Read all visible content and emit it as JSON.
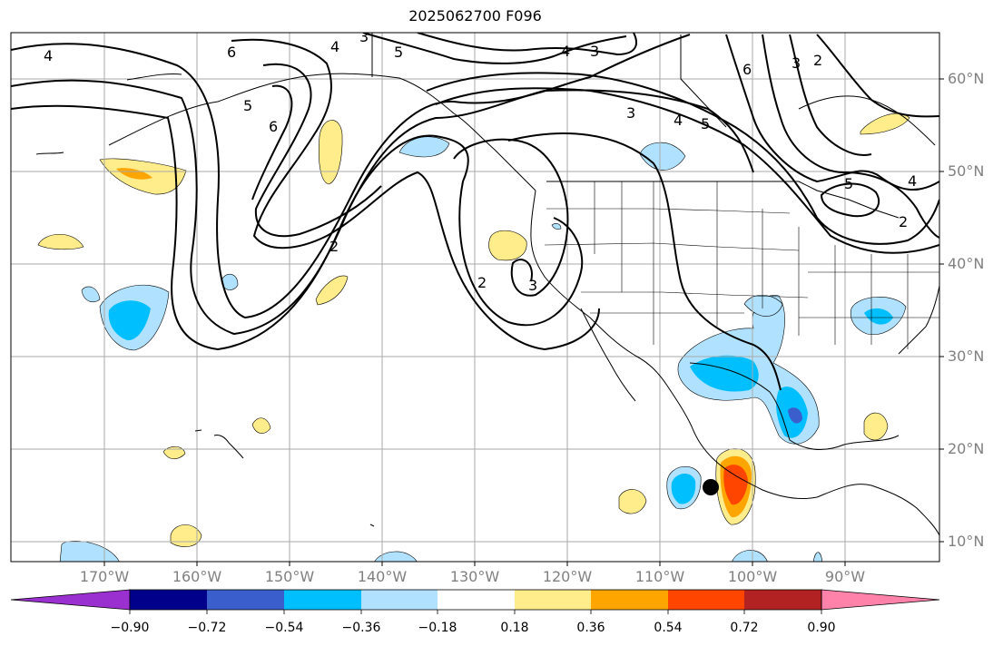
{
  "title": "2025062700 F096",
  "lat_labels": [
    "60°N",
    "50°N",
    "40°N",
    "30°N",
    "20°N",
    "10°N"
  ],
  "lon_labels": [
    "170°W",
    "160°W",
    "150°W",
    "140°W",
    "130°W",
    "120°W",
    "110°W",
    "100°W",
    "90°W"
  ],
  "colorbar": {
    "labels": [
      "−0.90",
      "−0.72",
      "−0.54",
      "−0.36",
      "−0.18",
      "0.18",
      "0.36",
      "0.54",
      "0.72",
      "0.90"
    ],
    "colors": [
      "#9b30d0",
      "#00008b",
      "#3a5fcd",
      "#00bfff",
      "#b0e2ff",
      "#ffffff",
      "#ffec8b",
      "#ffa500",
      "#ff4500",
      "#b22222",
      "#ff82ab"
    ]
  },
  "contour_labels": [
    "4",
    "6",
    "4",
    "3",
    "5",
    "4",
    "3",
    "3",
    "2",
    "6",
    "5",
    "6",
    "3",
    "4",
    "5",
    "2",
    "2",
    "5",
    "4",
    "2",
    "3"
  ],
  "colors": {
    "negative_light": "#b0e2ff",
    "negative_mid": "#00bfff",
    "negative_strong": "#3a5fcd",
    "positive_light": "#ffec8b",
    "positive_mid": "#ffa500",
    "positive_strong": "#ff4500",
    "positive_max": "#b22222"
  },
  "marker": "storm-center-dot"
}
